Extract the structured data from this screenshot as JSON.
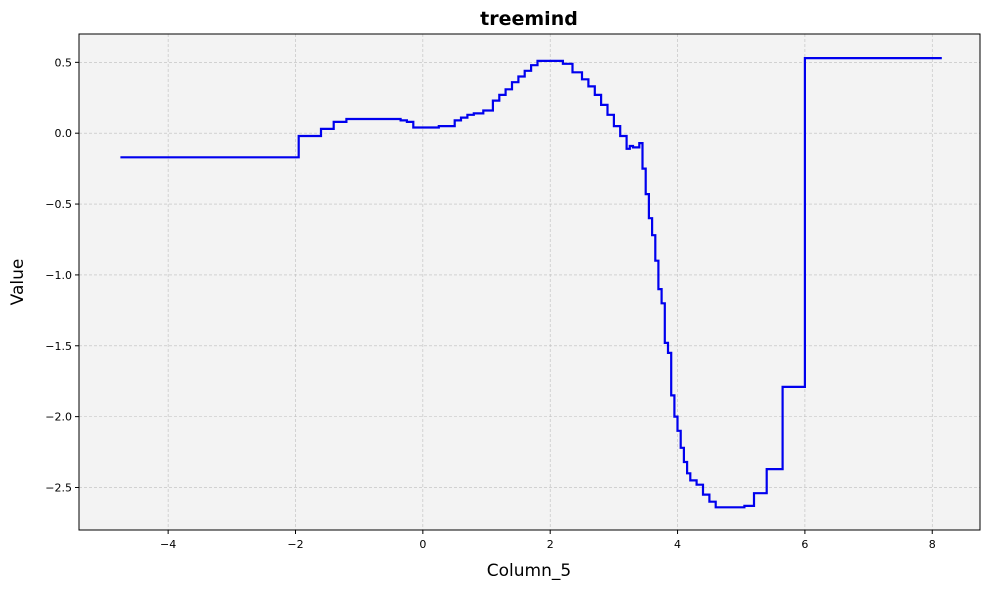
{
  "chart_data": {
    "type": "line",
    "title": "treemind",
    "xlabel": "Column_5",
    "ylabel": "Value",
    "xlim": [
      -5.4,
      8.75
    ],
    "ylim": [
      -2.8,
      0.7
    ],
    "grid": true,
    "x_ticks": [
      -4,
      -2,
      0,
      2,
      4,
      6,
      8
    ],
    "x_tick_labels": [
      "−4",
      "−2",
      "0",
      "2",
      "4",
      "6",
      "8"
    ],
    "y_ticks": [
      0.5,
      0.0,
      -0.5,
      -1.0,
      -1.5,
      -2.0,
      -2.5
    ],
    "y_tick_labels": [
      "0.5",
      "0.0",
      "−0.5",
      "−1.0",
      "−1.5",
      "−2.0",
      "−2.5"
    ],
    "series": [
      {
        "name": "treemind",
        "step": "post",
        "x": [
          -4.75,
          -1.95,
          -1.6,
          -1.4,
          -1.2,
          -0.35,
          -0.25,
          -0.15,
          0.25,
          0.5,
          0.6,
          0.7,
          0.8,
          0.95,
          1.1,
          1.2,
          1.3,
          1.4,
          1.5,
          1.6,
          1.7,
          1.8,
          2.2,
          2.35,
          2.5,
          2.6,
          2.7,
          2.8,
          2.9,
          3.0,
          3.1,
          3.2,
          3.25,
          3.3,
          3.4,
          3.45,
          3.5,
          3.55,
          3.6,
          3.65,
          3.7,
          3.75,
          3.8,
          3.85,
          3.9,
          3.95,
          4.0,
          4.05,
          4.1,
          4.15,
          4.2,
          4.3,
          4.4,
          4.5,
          4.6,
          4.7,
          5.05,
          5.2,
          5.4,
          5.65,
          6.0,
          8.15
        ],
        "values": [
          -0.17,
          -0.02,
          0.03,
          0.08,
          0.1,
          0.09,
          0.08,
          0.04,
          0.05,
          0.09,
          0.11,
          0.13,
          0.14,
          0.16,
          0.23,
          0.27,
          0.31,
          0.36,
          0.4,
          0.44,
          0.48,
          0.51,
          0.49,
          0.43,
          0.38,
          0.33,
          0.27,
          0.2,
          0.13,
          0.05,
          -0.02,
          -0.11,
          -0.09,
          -0.1,
          -0.07,
          -0.25,
          -0.43,
          -0.6,
          -0.72,
          -0.9,
          -1.1,
          -1.2,
          -1.48,
          -1.55,
          -1.85,
          -2.0,
          -2.1,
          -2.22,
          -2.32,
          -2.4,
          -2.45,
          -2.48,
          -2.55,
          -2.6,
          -2.64,
          -2.64,
          -2.63,
          -2.54,
          -2.37,
          -1.79,
          0.53,
          0.53
        ],
        "color": "#0000ee"
      }
    ]
  },
  "colors": {
    "plot_background": "#f3f3f3",
    "grid": "#bdbdbd",
    "line": "#0000ee"
  }
}
